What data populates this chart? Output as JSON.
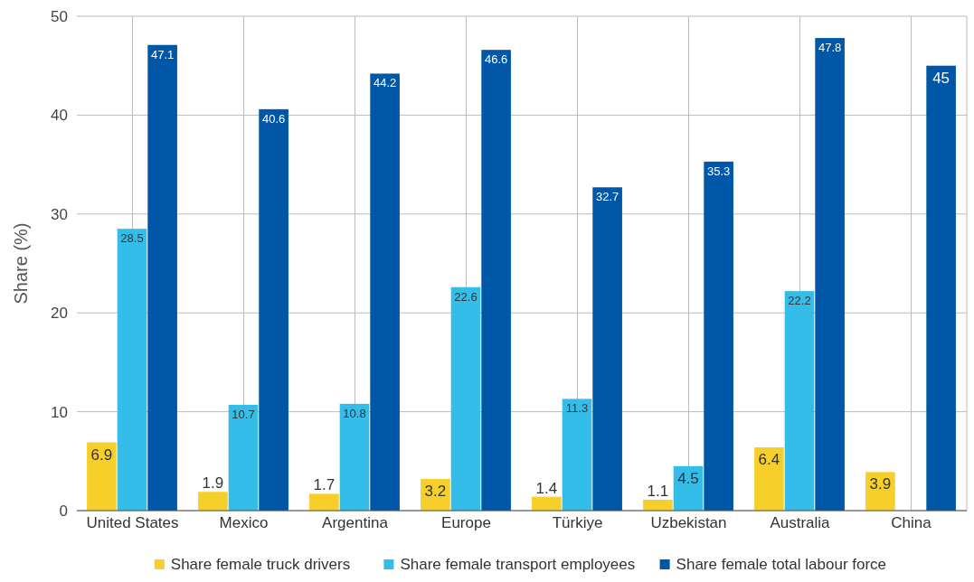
{
  "chart_data": {
    "type": "bar",
    "ylabel": "Share (%)",
    "categories": [
      "United States",
      "Mexico",
      "Argentina",
      "Europe",
      "Türkiye",
      "Uzbekistan",
      "Australia",
      "China"
    ],
    "series": [
      {
        "name": "Share female truck drivers",
        "color": "#f7cf2a",
        "values": [
          6.9,
          1.9,
          1.7,
          3.2,
          1.4,
          1.1,
          6.4,
          3.9
        ]
      },
      {
        "name": "Share female transport employees",
        "color": "#33bde8",
        "values": [
          28.5,
          10.7,
          10.8,
          22.6,
          11.3,
          4.5,
          22.2,
          null
        ]
      },
      {
        "name": "Share female total labour force",
        "color": "#0057a8",
        "values": [
          47.1,
          40.6,
          44.2,
          46.6,
          32.7,
          35.3,
          47.8,
          45
        ]
      }
    ],
    "ylim": [
      0,
      50
    ],
    "yticks": [
      0,
      10,
      20,
      30,
      40,
      50
    ],
    "grid": true,
    "legend": "bottom",
    "data_labels": true
  }
}
